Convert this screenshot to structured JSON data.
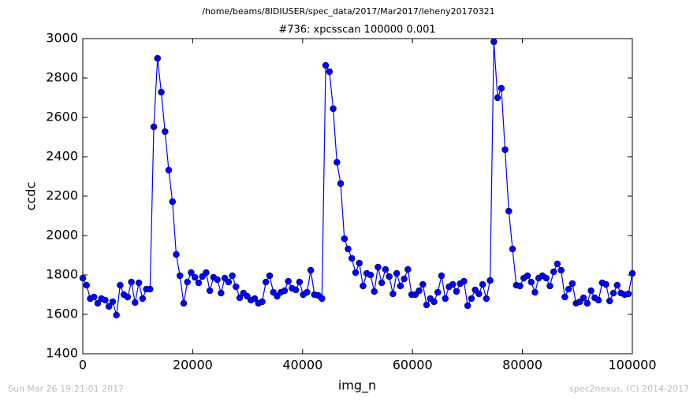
{
  "chart_data": {
    "type": "line",
    "suptitle": "/home/beams/8IDIUSER/spec_data/2017/Mar2017/leheny20170321",
    "title": "#736: xpcsscan 100000 0.001",
    "xlabel": "img_n",
    "ylabel": "ccdc",
    "footer_left": "Sun Mar 26 19:21:01 2017",
    "footer_right": "spec2nexus, (C) 2014-2017",
    "x": [
      0,
      680,
      1360,
      2040,
      2720,
      3400,
      4080,
      4760,
      5440,
      6120,
      6800,
      7480,
      8160,
      8840,
      9520,
      10200,
      10880,
      11560,
      12240,
      12920,
      13600,
      14280,
      14960,
      15640,
      16320,
      17000,
      17680,
      18360,
      19040,
      19720,
      20400,
      21080,
      21760,
      22440,
      23120,
      23800,
      24480,
      25160,
      25840,
      26520,
      27200,
      27880,
      28560,
      29240,
      29920,
      30600,
      31280,
      31960,
      32640,
      33320,
      34000,
      34680,
      35360,
      36040,
      36720,
      37400,
      38080,
      38760,
      39440,
      40120,
      40800,
      41480,
      42160,
      42840,
      43520,
      44200,
      44880,
      45560,
      46240,
      46920,
      47600,
      48280,
      48960,
      49640,
      50320,
      51000,
      51680,
      52360,
      53040,
      53720,
      54400,
      55080,
      55760,
      56440,
      57120,
      57800,
      58480,
      59160,
      59840,
      60520,
      61200,
      61880,
      62560,
      63240,
      63920,
      64600,
      65280,
      65960,
      66640,
      67320,
      68000,
      68680,
      69360,
      70040,
      70720,
      71400,
      72080,
      72760,
      73440,
      74120,
      74800,
      75480,
      76160,
      76840,
      77520,
      78200,
      78880,
      79560,
      80240,
      80920,
      81600,
      82280,
      82960,
      83640,
      84320,
      85000,
      85680,
      86360,
      87040,
      87720,
      88400,
      89080,
      89760,
      90440,
      91120,
      91800,
      92480,
      93160,
      93840,
      94520,
      95200,
      95880,
      96560,
      97240,
      97920,
      98600,
      99280,
      100000
    ],
    "series": [
      {
        "name": "ccdc",
        "color": "#0000ff",
        "values": [
          1784,
          1748,
          1680,
          1688,
          1656,
          1680,
          1672,
          1640,
          1664,
          1596,
          1748,
          1700,
          1688,
          1764,
          1660,
          1760,
          1680,
          1728,
          1728,
          2552,
          2900,
          2728,
          2528,
          2332,
          2172,
          1904,
          1796,
          1656,
          1764,
          1812,
          1788,
          1760,
          1792,
          1812,
          1720,
          1788,
          1776,
          1708,
          1784,
          1764,
          1796,
          1740,
          1684,
          1708,
          1692,
          1672,
          1680,
          1656,
          1664,
          1764,
          1796,
          1712,
          1692,
          1712,
          1720,
          1768,
          1732,
          1724,
          1764,
          1700,
          1712,
          1824,
          1700,
          1696,
          1680,
          2864,
          2832,
          2644,
          2372,
          2264,
          1984,
          1932,
          1884,
          1812,
          1860,
          1744,
          1808,
          1800,
          1716,
          1840,
          1760,
          1828,
          1792,
          1704,
          1808,
          1744,
          1780,
          1828,
          1700,
          1700,
          1720,
          1752,
          1648,
          1680,
          1664,
          1712,
          1796,
          1680,
          1740,
          1752,
          1716,
          1756,
          1768,
          1644,
          1680,
          1724,
          1704,
          1752,
          1680,
          1772,
          2984,
          2700,
          2748,
          2436,
          2124,
          1932,
          1748,
          1744,
          1784,
          1796,
          1764,
          1712,
          1784,
          1796,
          1784,
          1744,
          1816,
          1856,
          1824,
          1688,
          1728,
          1756,
          1656,
          1664,
          1684,
          1656,
          1720,
          1684,
          1672,
          1760,
          1752,
          1668,
          1708,
          1748,
          1708,
          1700,
          1704,
          1808
        ]
      }
    ],
    "xlim": [
      0,
      100000
    ],
    "xticks": [
      0,
      20000,
      40000,
      60000,
      80000,
      100000
    ],
    "ylim": [
      1400,
      3000
    ],
    "yticks": [
      1400,
      1600,
      1800,
      2000,
      2200,
      2400,
      2600,
      2800,
      3000
    ]
  }
}
